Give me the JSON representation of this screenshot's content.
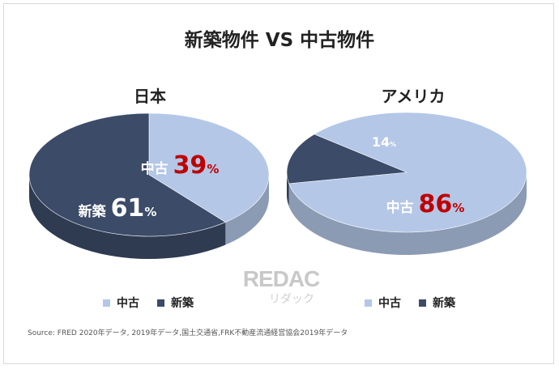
{
  "title": "新築物件 VS 中古物件",
  "colors": {
    "used": "#b4c7e7",
    "new": "#3b4b68",
    "accent": "#c00000"
  },
  "chart_data": [
    {
      "type": "pie",
      "title": "日本",
      "slices": [
        {
          "name": "中古",
          "value": 39,
          "label_name": "中古",
          "label_value": "39",
          "unit": "%"
        },
        {
          "name": "新築",
          "value": 61,
          "label_name": "新築",
          "label_value": "61",
          "unit": "%"
        }
      ],
      "legend": [
        "中古",
        "新築"
      ],
      "legend_position": "bottom"
    },
    {
      "type": "pie",
      "title": "アメリカ",
      "slices": [
        {
          "name": "中古",
          "value": 86,
          "label_name": "中古",
          "label_value": "86",
          "unit": "%"
        },
        {
          "name": "新築",
          "value": 14,
          "label_name": "",
          "label_value": "14",
          "unit": "%"
        }
      ],
      "legend": [
        "中古",
        "新築"
      ],
      "legend_position": "bottom"
    }
  ],
  "source": "Source: FRED 2020年データ, 2019年データ,国土交通省,FRK不動産流通経営協会2019年データ",
  "watermark": {
    "main": "REDAC",
    "sub": "リダック"
  }
}
